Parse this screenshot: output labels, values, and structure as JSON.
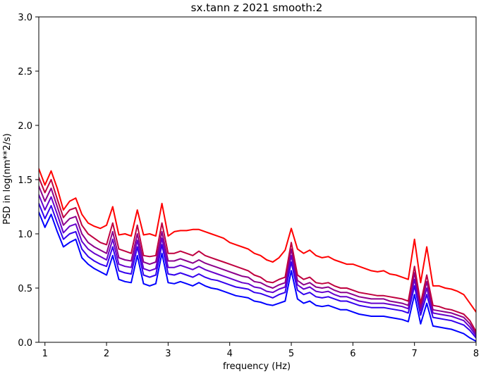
{
  "chart_data": {
    "type": "line",
    "title": "sx.tann z 2021 smooth:2",
    "xlabel": "frequency (Hz)",
    "ylabel": "PSD in log(nm**2/s)",
    "xlim": [
      0.9,
      8.0
    ],
    "ylim": [
      0.0,
      3.0
    ],
    "x_ticks": [
      "1",
      "2",
      "3",
      "4",
      "5",
      "6",
      "7",
      "8"
    ],
    "y_ticks": [
      "0.0",
      "0.5",
      "1.0",
      "1.5",
      "2.0",
      "2.5",
      "3.0"
    ],
    "grid": false,
    "legend": "none",
    "x": [
      0.9,
      1.0,
      1.1,
      1.2,
      1.3,
      1.4,
      1.5,
      1.6,
      1.7,
      1.8,
      1.9,
      2.0,
      2.1,
      2.2,
      2.3,
      2.4,
      2.5,
      2.6,
      2.7,
      2.8,
      2.9,
      3.0,
      3.1,
      3.2,
      3.3,
      3.4,
      3.5,
      3.6,
      3.7,
      3.8,
      3.9,
      4.0,
      4.1,
      4.2,
      4.3,
      4.4,
      4.5,
      4.6,
      4.7,
      4.8,
      4.9,
      5.0,
      5.1,
      5.2,
      5.3,
      5.4,
      5.5,
      5.6,
      5.7,
      5.8,
      5.9,
      6.0,
      6.1,
      6.2,
      6.3,
      6.4,
      6.5,
      6.6,
      6.7,
      6.8,
      6.9,
      7.0,
      7.1,
      7.2,
      7.3,
      7.4,
      7.5,
      7.6,
      7.7,
      7.8,
      7.9,
      8.0
    ],
    "series": [
      {
        "color": "#ff0000",
        "values": [
          1.6,
          1.45,
          1.58,
          1.42,
          1.22,
          1.3,
          1.33,
          1.18,
          1.1,
          1.07,
          1.05,
          1.08,
          1.25,
          0.99,
          1.0,
          0.98,
          1.22,
          0.99,
          1.0,
          0.98,
          1.28,
          0.98,
          1.02,
          1.03,
          1.03,
          1.04,
          1.04,
          1.02,
          1.0,
          0.98,
          0.96,
          0.92,
          0.9,
          0.88,
          0.86,
          0.82,
          0.8,
          0.76,
          0.74,
          0.78,
          0.85,
          1.05,
          0.86,
          0.82,
          0.85,
          0.8,
          0.78,
          0.79,
          0.76,
          0.74,
          0.72,
          0.72,
          0.7,
          0.68,
          0.66,
          0.65,
          0.66,
          0.63,
          0.62,
          0.6,
          0.58,
          0.95,
          0.55,
          0.88,
          0.52,
          0.52,
          0.5,
          0.49,
          0.47,
          0.44,
          0.36,
          0.28
        ]
      },
      {
        "color": "#bf003f",
        "values": [
          1.52,
          1.38,
          1.5,
          1.32,
          1.15,
          1.22,
          1.24,
          1.08,
          1.0,
          0.96,
          0.92,
          0.9,
          1.1,
          0.86,
          0.84,
          0.82,
          1.08,
          0.8,
          0.79,
          0.8,
          1.1,
          0.82,
          0.82,
          0.84,
          0.82,
          0.8,
          0.84,
          0.8,
          0.78,
          0.76,
          0.74,
          0.72,
          0.7,
          0.68,
          0.66,
          0.62,
          0.6,
          0.56,
          0.55,
          0.58,
          0.6,
          0.92,
          0.62,
          0.58,
          0.6,
          0.55,
          0.54,
          0.55,
          0.52,
          0.5,
          0.5,
          0.48,
          0.46,
          0.45,
          0.44,
          0.43,
          0.43,
          0.42,
          0.41,
          0.4,
          0.38,
          0.7,
          0.36,
          0.62,
          0.34,
          0.33,
          0.31,
          0.3,
          0.28,
          0.26,
          0.2,
          0.1
        ]
      },
      {
        "color": "#8c008c",
        "values": [
          1.44,
          1.3,
          1.42,
          1.25,
          1.08,
          1.14,
          1.16,
          1.0,
          0.92,
          0.88,
          0.85,
          0.82,
          1.02,
          0.78,
          0.76,
          0.75,
          1.0,
          0.74,
          0.72,
          0.74,
          1.02,
          0.75,
          0.75,
          0.77,
          0.75,
          0.73,
          0.76,
          0.73,
          0.71,
          0.69,
          0.67,
          0.65,
          0.63,
          0.61,
          0.6,
          0.56,
          0.55,
          0.52,
          0.5,
          0.53,
          0.55,
          0.86,
          0.57,
          0.53,
          0.55,
          0.51,
          0.5,
          0.51,
          0.48,
          0.46,
          0.46,
          0.44,
          0.42,
          0.41,
          0.4,
          0.4,
          0.4,
          0.38,
          0.37,
          0.36,
          0.34,
          0.64,
          0.32,
          0.56,
          0.3,
          0.29,
          0.28,
          0.27,
          0.25,
          0.23,
          0.17,
          0.08
        ]
      },
      {
        "color": "#6600cc",
        "values": [
          1.36,
          1.22,
          1.34,
          1.18,
          1.01,
          1.07,
          1.09,
          0.93,
          0.86,
          0.82,
          0.79,
          0.76,
          0.95,
          0.72,
          0.7,
          0.69,
          0.94,
          0.68,
          0.66,
          0.68,
          0.96,
          0.69,
          0.69,
          0.71,
          0.69,
          0.67,
          0.7,
          0.67,
          0.65,
          0.63,
          0.61,
          0.59,
          0.57,
          0.55,
          0.54,
          0.51,
          0.5,
          0.47,
          0.46,
          0.49,
          0.51,
          0.8,
          0.53,
          0.49,
          0.51,
          0.47,
          0.46,
          0.47,
          0.44,
          0.42,
          0.42,
          0.4,
          0.38,
          0.37,
          0.36,
          0.36,
          0.36,
          0.35,
          0.34,
          0.33,
          0.31,
          0.58,
          0.29,
          0.5,
          0.27,
          0.26,
          0.25,
          0.24,
          0.22,
          0.2,
          0.14,
          0.06
        ]
      },
      {
        "color": "#3300ee",
        "values": [
          1.28,
          1.14,
          1.26,
          1.1,
          0.95,
          1.0,
          1.02,
          0.86,
          0.79,
          0.75,
          0.72,
          0.7,
          0.88,
          0.66,
          0.64,
          0.63,
          0.88,
          0.62,
          0.6,
          0.62,
          0.9,
          0.63,
          0.62,
          0.64,
          0.62,
          0.6,
          0.63,
          0.6,
          0.58,
          0.57,
          0.55,
          0.53,
          0.51,
          0.5,
          0.49,
          0.46,
          0.45,
          0.43,
          0.41,
          0.44,
          0.46,
          0.74,
          0.48,
          0.44,
          0.46,
          0.42,
          0.41,
          0.42,
          0.4,
          0.38,
          0.38,
          0.36,
          0.34,
          0.33,
          0.32,
          0.32,
          0.32,
          0.31,
          0.3,
          0.29,
          0.27,
          0.52,
          0.25,
          0.44,
          0.23,
          0.22,
          0.21,
          0.2,
          0.18,
          0.16,
          0.11,
          0.04
        ]
      },
      {
        "color": "#0000ff",
        "values": [
          1.2,
          1.06,
          1.18,
          1.02,
          0.88,
          0.92,
          0.95,
          0.78,
          0.72,
          0.68,
          0.65,
          0.62,
          0.8,
          0.58,
          0.56,
          0.55,
          0.8,
          0.54,
          0.52,
          0.54,
          0.82,
          0.55,
          0.54,
          0.56,
          0.54,
          0.52,
          0.55,
          0.52,
          0.5,
          0.49,
          0.47,
          0.45,
          0.43,
          0.42,
          0.41,
          0.38,
          0.37,
          0.35,
          0.34,
          0.36,
          0.38,
          0.66,
          0.4,
          0.36,
          0.38,
          0.34,
          0.33,
          0.34,
          0.32,
          0.3,
          0.3,
          0.28,
          0.26,
          0.25,
          0.24,
          0.24,
          0.24,
          0.23,
          0.22,
          0.21,
          0.19,
          0.44,
          0.17,
          0.36,
          0.15,
          0.14,
          0.13,
          0.12,
          0.1,
          0.08,
          0.04,
          0.01
        ]
      }
    ]
  }
}
